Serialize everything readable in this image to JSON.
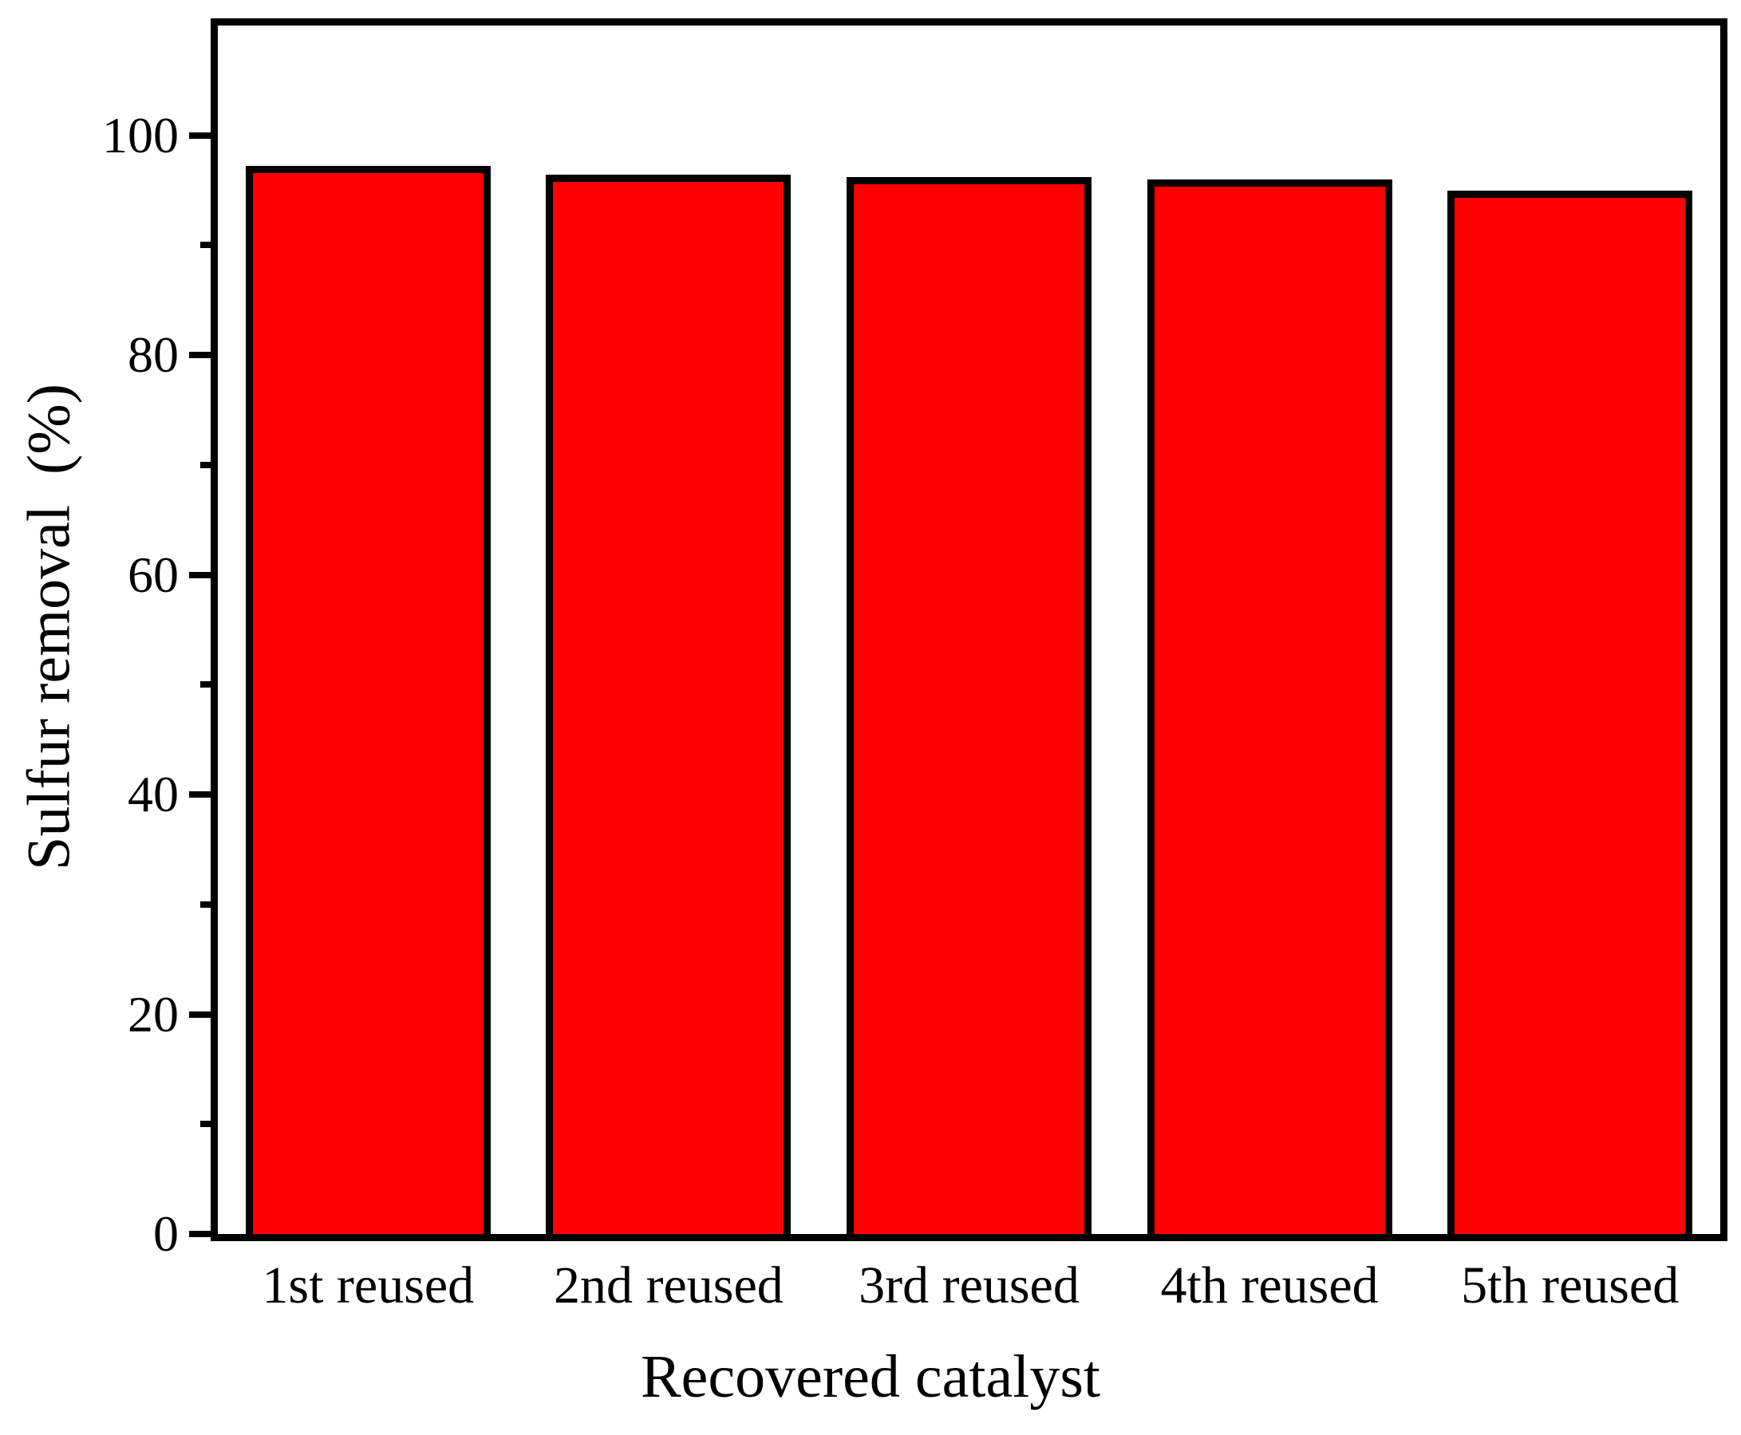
{
  "chart_data": {
    "type": "bar",
    "title": "",
    "xlabel": "Recovered catalyst",
    "ylabel": "Sulfur removal  (%)",
    "categories": [
      "1st reused",
      "2nd reused",
      "3rd reused",
      "4th reused",
      "5th reused"
    ],
    "values": [
      97.2,
      96.4,
      96.2,
      96.0,
      95.0
    ],
    "ylim": [
      0,
      110
    ],
    "yticks_major": [
      0,
      20,
      40,
      60,
      80,
      100
    ],
    "yticks_minor": [
      10,
      30,
      50,
      70,
      90
    ],
    "grid": false,
    "legend": null,
    "bar_color": "#ff0000",
    "bar_border_color": "#000000",
    "frame_color": "#000000",
    "background_color": "#ffffff"
  }
}
